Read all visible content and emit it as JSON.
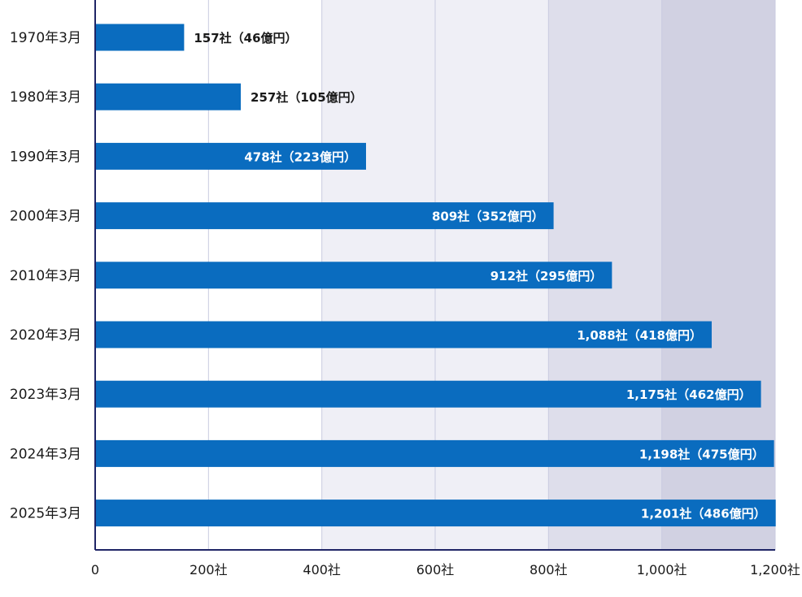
{
  "chart_data": {
    "type": "bar",
    "orientation": "horizontal",
    "categories": [
      "1970年3月",
      "1980年3月",
      "1990年3月",
      "2000年3月",
      "2010年3月",
      "2020年3月",
      "2023年3月",
      "2024年3月",
      "2025年3月"
    ],
    "values": [
      157,
      257,
      478,
      809,
      912,
      1088,
      1175,
      1198,
      1201
    ],
    "data_labels": [
      "157社（46億円）",
      "257社（105億円）",
      "478社（223億円）",
      "809社（352億円）",
      "912社（295億円）",
      "1,088社（418億円）",
      "1,175社（462億円）",
      "1,198社（475億円）",
      "1,201社（486億円）"
    ],
    "x_ticks": [
      0,
      200,
      400,
      600,
      800,
      1000,
      1200
    ],
    "x_tick_labels": [
      "0",
      "200社",
      "400社",
      "600社",
      "800社",
      "1,000社",
      "1,200社"
    ],
    "xlim": [
      0,
      1200
    ],
    "title": "",
    "xlabel": "",
    "ylabel": "",
    "grid": true,
    "colors": {
      "bar": "#0a6cbf",
      "axis": "#1f2566",
      "grid": "#c9cbe0",
      "band_light": "#efeff6",
      "band_medium": "#dedeeb",
      "band_dark": "#d1d1e2",
      "label_inside": "#ffffff",
      "label_outside": "#1a1a1a"
    }
  }
}
